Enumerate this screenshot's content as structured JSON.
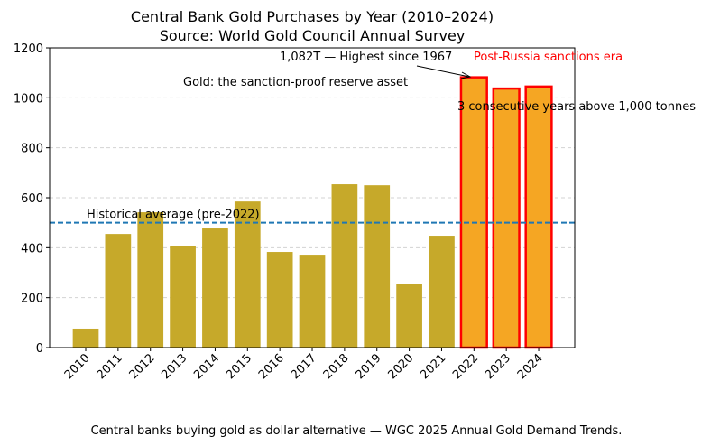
{
  "chart_data": {
    "type": "bar",
    "title": "Central Bank Gold Purchases by Year (2010–2024)",
    "subtitle": "Source: World Gold Council Annual Survey",
    "xlabel": "",
    "ylabel": "",
    "ylim": [
      0,
      1200
    ],
    "yticks": [
      "0",
      "200",
      "400",
      "600",
      "800",
      "1000",
      "1200"
    ],
    "grid": "y dashed",
    "categories": [
      "2010",
      "2011",
      "2012",
      "2013",
      "2014",
      "2015",
      "2016",
      "2017",
      "2018",
      "2019",
      "2020",
      "2021",
      "2022",
      "2023",
      "2024"
    ],
    "values": [
      76,
      455,
      542,
      408,
      477,
      585,
      383,
      372,
      654,
      650,
      253,
      448,
      1082,
      1037,
      1045
    ],
    "highlighted": [
      "2022",
      "2023",
      "2024"
    ],
    "colors": {
      "normal": "#c6a92a",
      "highlight": "#f5a623",
      "highlight_edge": "#ff0000",
      "avg_line": "#1f77b4"
    },
    "reference_line": {
      "value": 500,
      "label": "Historical average (pre-2022)"
    },
    "annotations": {
      "peak": "1,082T — Highest since 1967",
      "era": "Post-Russia sanctions era",
      "asset": "Gold: the sanction-proof reserve asset",
      "consecutive": "3 consecutive years above 1,000 tonnes"
    },
    "caption": "Central banks buying gold as dollar alternative — WGC 2025 Annual Gold Demand Trends."
  }
}
